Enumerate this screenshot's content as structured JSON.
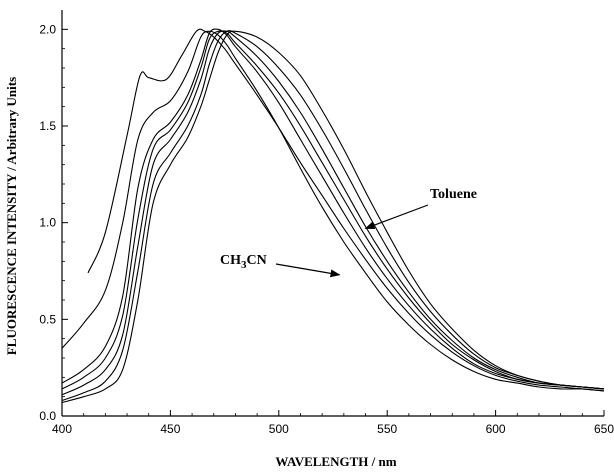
{
  "chart_data": {
    "type": "line",
    "xlabel": "WAVELENGTH / nm",
    "ylabel": "FLUORESCENCE INTENSITY / Arbitrary Units",
    "xlim": [
      400,
      650
    ],
    "ylim": [
      0,
      2.1
    ],
    "xticks": [
      400,
      450,
      500,
      550,
      600,
      650
    ],
    "yticks": [
      0.0,
      0.5,
      1.0,
      1.5,
      2.0
    ],
    "xtick_labels": [
      "400",
      "450",
      "500",
      "550",
      "600",
      "650"
    ],
    "ytick_labels": [
      "0.0",
      "0.5",
      "1.0",
      "1.5",
      "2.0"
    ],
    "grid": false,
    "annotations": [
      {
        "text": "Toluene",
        "arrow_to": [
          540,
          0.97
        ]
      },
      {
        "text": "CH3CN",
        "arrow_to": [
          528,
          0.73
        ]
      }
    ],
    "series": [
      {
        "x": [
          412,
          420,
          430,
          436,
          440,
          448,
          455,
          462,
          466,
          470,
          475,
          480,
          490,
          500,
          510,
          520,
          530,
          540,
          550,
          560,
          570,
          580,
          590,
          600,
          610,
          620,
          630,
          640,
          650
        ],
        "y": [
          0.74,
          0.95,
          1.45,
          1.76,
          1.75,
          1.74,
          1.86,
          1.99,
          1.99,
          1.96,
          1.9,
          1.82,
          1.66,
          1.49,
          1.31,
          1.14,
          0.97,
          0.81,
          0.66,
          0.53,
          0.42,
          0.33,
          0.26,
          0.21,
          0.18,
          0.16,
          0.15,
          0.14,
          0.13
        ]
      },
      {
        "x": [
          400,
          410,
          420,
          428,
          435,
          442,
          450,
          458,
          464,
          468,
          472,
          476,
          480,
          490,
          500,
          510,
          520,
          530,
          540,
          550,
          560,
          570,
          580,
          590,
          600,
          610,
          620,
          630,
          640,
          650
        ],
        "y": [
          0.35,
          0.48,
          0.65,
          1.0,
          1.43,
          1.57,
          1.63,
          1.78,
          1.96,
          1.99,
          1.97,
          1.92,
          1.85,
          1.68,
          1.49,
          1.28,
          1.08,
          0.9,
          0.74,
          0.59,
          0.47,
          0.37,
          0.29,
          0.23,
          0.19,
          0.17,
          0.15,
          0.14,
          0.14,
          0.13
        ]
      },
      {
        "x": [
          400,
          410,
          420,
          428,
          435,
          442,
          450,
          458,
          464,
          468,
          472,
          476,
          480,
          490,
          500,
          510,
          520,
          530,
          540,
          550,
          560,
          570,
          580,
          590,
          600,
          610,
          620,
          630,
          640,
          650
        ],
        "y": [
          0.17,
          0.24,
          0.36,
          0.62,
          1.18,
          1.43,
          1.52,
          1.66,
          1.84,
          1.98,
          2.0,
          1.97,
          1.91,
          1.78,
          1.62,
          1.43,
          1.24,
          1.05,
          0.87,
          0.71,
          0.57,
          0.45,
          0.35,
          0.27,
          0.22,
          0.19,
          0.17,
          0.16,
          0.15,
          0.14
        ]
      },
      {
        "x": [
          400,
          410,
          420,
          428,
          435,
          442,
          450,
          458,
          464,
          468,
          472,
          476,
          480,
          490,
          500,
          510,
          520,
          530,
          540,
          550,
          560,
          570,
          580,
          590,
          600,
          610,
          620,
          630,
          640,
          650
        ],
        "y": [
          0.14,
          0.2,
          0.3,
          0.52,
          1.02,
          1.38,
          1.48,
          1.62,
          1.8,
          1.95,
          1.99,
          1.98,
          1.93,
          1.81,
          1.67,
          1.5,
          1.31,
          1.12,
          0.93,
          0.76,
          0.61,
          0.48,
          0.37,
          0.29,
          0.23,
          0.19,
          0.17,
          0.16,
          0.15,
          0.14
        ]
      },
      {
        "x": [
          400,
          410,
          420,
          428,
          435,
          442,
          450,
          458,
          464,
          468,
          472,
          476,
          480,
          490,
          500,
          510,
          520,
          530,
          540,
          550,
          560,
          570,
          580,
          590,
          600,
          610,
          620,
          630,
          640,
          650
        ],
        "y": [
          0.11,
          0.16,
          0.24,
          0.42,
          0.88,
          1.3,
          1.43,
          1.57,
          1.74,
          1.9,
          1.98,
          1.99,
          1.96,
          1.86,
          1.73,
          1.57,
          1.38,
          1.18,
          0.98,
          0.8,
          0.64,
          0.5,
          0.39,
          0.3,
          0.24,
          0.2,
          0.17,
          0.16,
          0.15,
          0.14
        ]
      },
      {
        "x": [
          400,
          410,
          420,
          428,
          435,
          442,
          450,
          458,
          464,
          468,
          472,
          476,
          480,
          490,
          500,
          510,
          520,
          530,
          540,
          550,
          560,
          570,
          580,
          590,
          600,
          610,
          620,
          630,
          640,
          650
        ],
        "y": [
          0.08,
          0.12,
          0.18,
          0.34,
          0.75,
          1.2,
          1.36,
          1.5,
          1.66,
          1.82,
          1.94,
          1.99,
          1.98,
          1.91,
          1.8,
          1.66,
          1.48,
          1.28,
          1.07,
          0.87,
          0.69,
          0.54,
          0.42,
          0.32,
          0.25,
          0.21,
          0.18,
          0.16,
          0.15,
          0.14
        ]
      },
      {
        "x": [
          400,
          410,
          420,
          428,
          435,
          442,
          450,
          458,
          464,
          468,
          472,
          476,
          480,
          490,
          500,
          510,
          520,
          530,
          540,
          550,
          560,
          570,
          580,
          590,
          600,
          610,
          620,
          630,
          640,
          650
        ],
        "y": [
          0.07,
          0.1,
          0.14,
          0.24,
          0.6,
          1.1,
          1.3,
          1.44,
          1.6,
          1.74,
          1.88,
          1.97,
          1.99,
          1.96,
          1.88,
          1.76,
          1.58,
          1.38,
          1.16,
          0.95,
          0.75,
          0.58,
          0.45,
          0.34,
          0.26,
          0.21,
          0.18,
          0.16,
          0.15,
          0.14
        ]
      }
    ]
  }
}
